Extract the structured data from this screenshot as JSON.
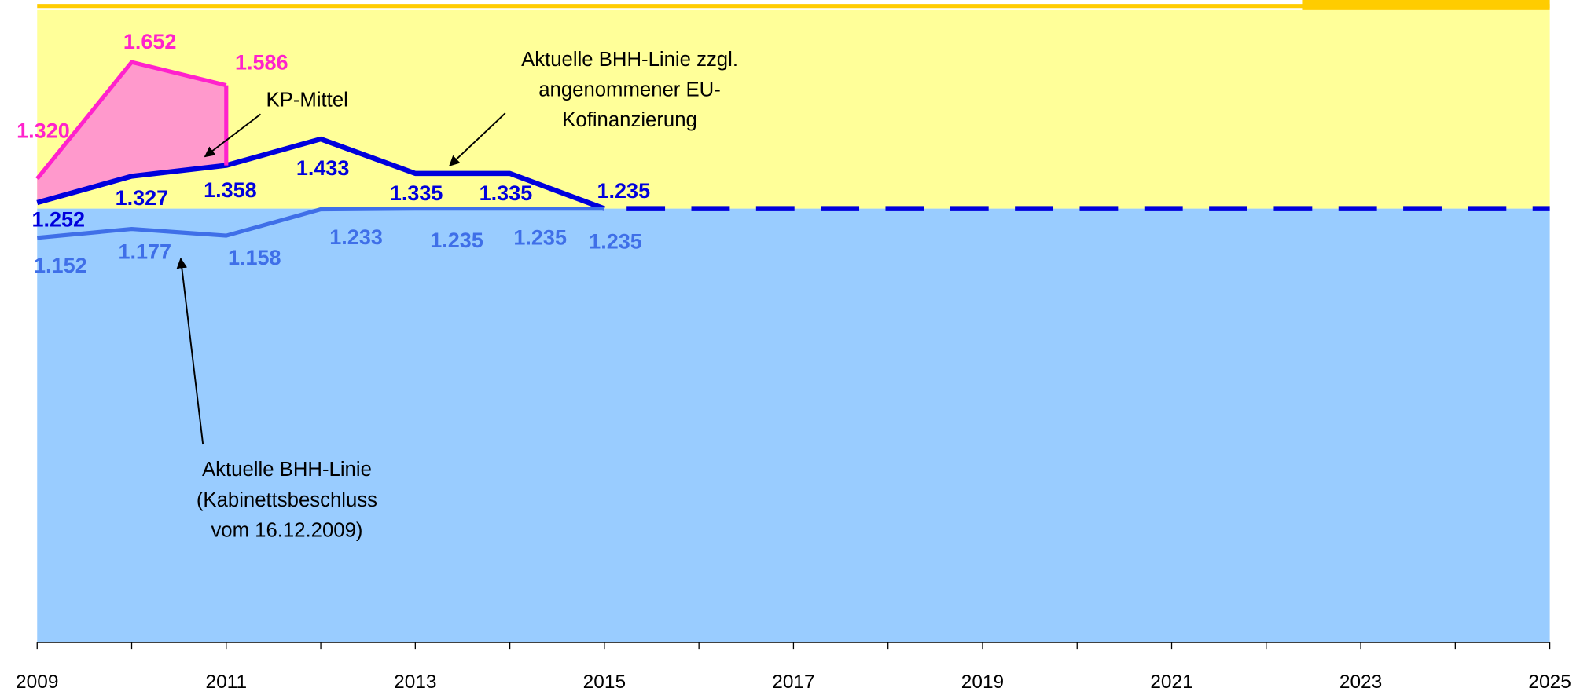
{
  "chart_data": {
    "type": "line",
    "x": [
      2009,
      2010,
      2011,
      2012,
      2013,
      2014,
      2015
    ],
    "series": [
      {
        "name": "KP-Mittel",
        "color": "#ff22cc",
        "x": [
          2009,
          2010,
          2011
        ],
        "values": [
          1320,
          1652,
          1586
        ],
        "value_labels": [
          "1.320",
          "1.652",
          "1.586"
        ]
      },
      {
        "name": "Aktuelle BHH-Linie zzgl. angenommener EU-Kofinanzierung",
        "color": "#0000dd",
        "x": [
          2009,
          2010,
          2011,
          2012,
          2013,
          2014,
          2015
        ],
        "values": [
          1252,
          1327,
          1358,
          1433,
          1335,
          1335,
          1235
        ],
        "value_labels": [
          "1.252",
          "1.327",
          "1.358",
          "1.433",
          "1.335",
          "1.335",
          "1.235"
        ]
      },
      {
        "name": "Aktuelle BHH-Linie (Kabinettsbeschluss vom 16.12.2009)",
        "color": "#3f6fe8",
        "x": [
          2009,
          2010,
          2011,
          2012,
          2013,
          2014,
          2015
        ],
        "values": [
          1152,
          1177,
          1158,
          1233,
          1235,
          1235,
          1235
        ],
        "value_labels": [
          "1.152",
          "1.177",
          "1.158",
          "1.233",
          "1.235",
          "1.235",
          "1.235"
        ]
      }
    ],
    "annotations": [
      {
        "lines": [
          "KP-Mittel"
        ]
      },
      {
        "lines": [
          "Aktuelle BHH-Linie zzgl.",
          "angenommener EU-",
          "Kofinanzierung"
        ]
      },
      {
        "lines": [
          "Aktuelle BHH-Linie",
          "(Kabinettsbeschluss",
          "vom 16.12.2009)"
        ]
      }
    ],
    "xlim": [
      2009,
      2025
    ],
    "xticks": [
      2009,
      2011,
      2013,
      2015,
      2017,
      2019,
      2021,
      2023,
      2025
    ],
    "ylim": [
      0,
      1800
    ]
  }
}
